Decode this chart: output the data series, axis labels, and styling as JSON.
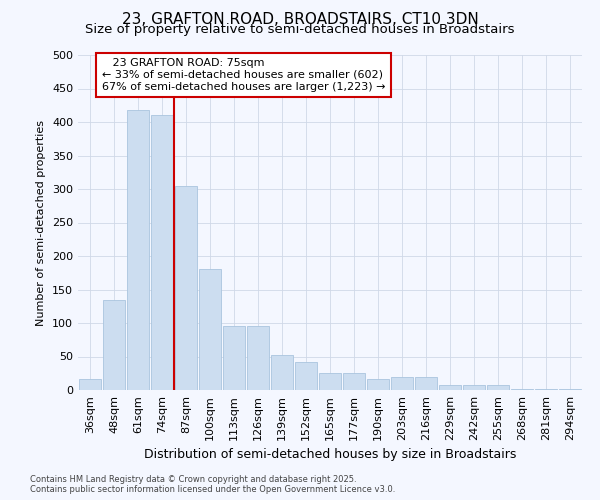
{
  "title": "23, GRAFTON ROAD, BROADSTAIRS, CT10 3DN",
  "subtitle": "Size of property relative to semi-detached houses in Broadstairs",
  "xlabel": "Distribution of semi-detached houses by size in Broadstairs",
  "ylabel": "Number of semi-detached properties",
  "categories": [
    "36sqm",
    "48sqm",
    "61sqm",
    "74sqm",
    "87sqm",
    "100sqm",
    "113sqm",
    "126sqm",
    "139sqm",
    "152sqm",
    "165sqm",
    "177sqm",
    "190sqm",
    "203sqm",
    "216sqm",
    "229sqm",
    "242sqm",
    "255sqm",
    "268sqm",
    "281sqm",
    "294sqm"
  ],
  "values": [
    17,
    135,
    418,
    410,
    305,
    180,
    96,
    96,
    52,
    42,
    26,
    26,
    16,
    20,
    20,
    7,
    7,
    7,
    2,
    2,
    2
  ],
  "bar_color": "#ccddf0",
  "bar_edge_color": "#aac4de",
  "red_line_x": 3.5,
  "red_line_label": "23 GRAFTON ROAD: 75sqm",
  "smaller_pct": "33%",
  "smaller_count": "602",
  "larger_pct": "67%",
  "larger_count": "1,223",
  "ylim": [
    0,
    500
  ],
  "yticks": [
    0,
    50,
    100,
    150,
    200,
    250,
    300,
    350,
    400,
    450,
    500
  ],
  "bg_color": "#f4f7ff",
  "grid_color": "#d0d8e8",
  "footer_line1": "Contains HM Land Registry data © Crown copyright and database right 2025.",
  "footer_line2": "Contains public sector information licensed under the Open Government Licence v3.0.",
  "title_fontsize": 11,
  "subtitle_fontsize": 9.5,
  "xlabel_fontsize": 9,
  "ylabel_fontsize": 8,
  "tick_fontsize": 8,
  "ann_fontsize": 8,
  "footer_fontsize": 6
}
